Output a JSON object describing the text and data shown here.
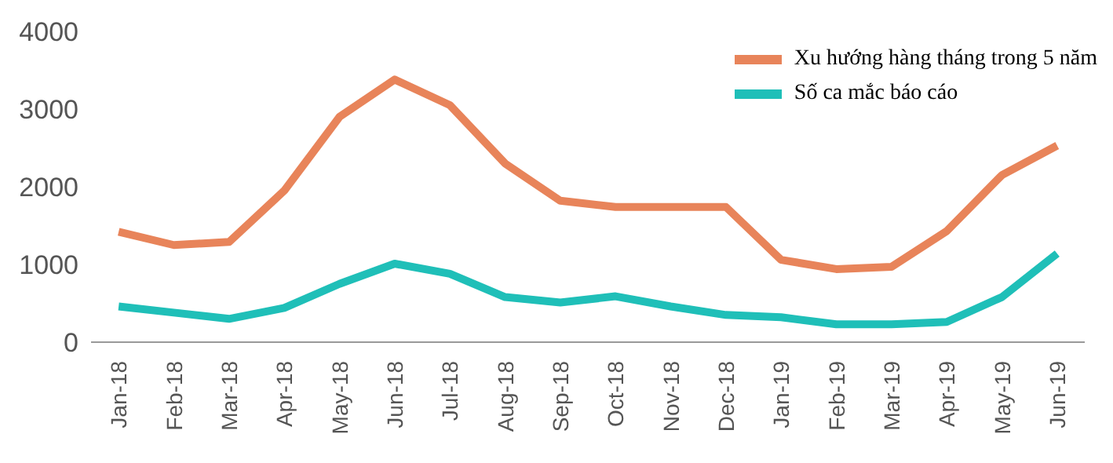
{
  "chart_data": {
    "type": "line",
    "categories": [
      "Jan-18",
      "Feb-18",
      "Mar-18",
      "Apr-18",
      "May-18",
      "Jun-18",
      "Jul-18",
      "Aug-18",
      "Sep-18",
      "Oct-18",
      "Nov-18",
      "Dec-18",
      "Jan-19",
      "Feb-19",
      "Mar-19",
      "Apr-19",
      "May-19",
      "Jun-19"
    ],
    "series": [
      {
        "name": "Xu hướng hàng tháng trong 5 năm",
        "color": "#e8845a",
        "values": [
          1420,
          1250,
          1290,
          1950,
          2900,
          3380,
          3050,
          2300,
          1820,
          1740,
          1740,
          1740,
          1060,
          940,
          970,
          1430,
          2150,
          2530
        ]
      },
      {
        "name": "Số ca mắc báo cáo",
        "color": "#1fbfb8",
        "values": [
          460,
          380,
          300,
          440,
          750,
          1010,
          880,
          580,
          510,
          590,
          460,
          350,
          320,
          230,
          230,
          260,
          580,
          1140
        ]
      }
    ],
    "ylim": [
      0,
      4000
    ],
    "yticks": [
      0,
      1000,
      2000,
      3000,
      4000
    ],
    "grid": false,
    "legend": "top right",
    "marker": "none",
    "line_style": "solid"
  }
}
